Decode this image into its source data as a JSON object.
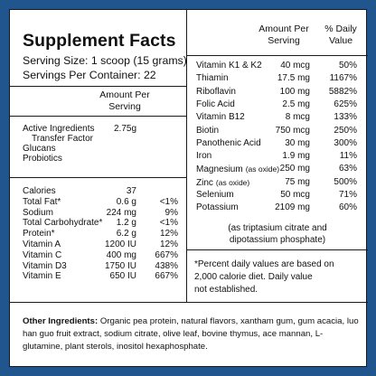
{
  "title": "Supplement Facts",
  "serving_size": "Serving Size: 1 scoop (15 grams)",
  "servings_per_container": "Servings Per Container: 22",
  "left_header": "Amount Per Serving",
  "right_header": {
    "amount": "Amount Per Serving",
    "dv": "% Daily Value"
  },
  "active": {
    "label": "Active Ingredients",
    "value": "2.75g",
    "sub": [
      "Transfer Factor",
      "Glucans",
      "Probiotics"
    ]
  },
  "left_rows": [
    {
      "name": "Calories",
      "amount": "37",
      "dv": ""
    },
    {
      "name": "Total Fat*",
      "amount": "0.6 g",
      "dv": "<1%"
    },
    {
      "name": "Sodium",
      "amount": "224 mg",
      "dv": "9%"
    },
    {
      "name": "Total Carbohydrate*",
      "amount": "1.2 g",
      "dv": "<1%"
    },
    {
      "name": "Protein*",
      "amount": "6.2 g",
      "dv": "12%"
    },
    {
      "name": "Vitamin A",
      "amount": "1200 IU",
      "dv": "12%"
    },
    {
      "name": "Vitamin C",
      "amount": "400 mg",
      "dv": "667%"
    },
    {
      "name": "Vitamin D3",
      "amount": "1750 IU",
      "dv": "438%"
    },
    {
      "name": "Vitamin E",
      "amount": "650 IU",
      "dv": "667%"
    }
  ],
  "right_rows": [
    {
      "name": "Vitamin K1 & K2",
      "qual": "",
      "amount": "40 mcg",
      "dv": "50%"
    },
    {
      "name": "Thiamin",
      "qual": "",
      "amount": "17.5 mg",
      "dv": "1167%"
    },
    {
      "name": "Riboflavin",
      "qual": "",
      "amount": "100 mg",
      "dv": "5882%"
    },
    {
      "name": "Folic Acid",
      "qual": "",
      "amount": "2.5 mg",
      "dv": "625%"
    },
    {
      "name": "Vitamin B12",
      "qual": "",
      "amount": "8 mcg",
      "dv": "133%"
    },
    {
      "name": "Biotin",
      "qual": "",
      "amount": "750 mcg",
      "dv": "250%"
    },
    {
      "name": "Panothenic Acid",
      "qual": "",
      "amount": "30 mg",
      "dv": "300%"
    },
    {
      "name": "Iron",
      "qual": "",
      "amount": "1.9 mg",
      "dv": "11%"
    },
    {
      "name": "Magnesium",
      "qual": "(as oxide)",
      "amount": "250 mg",
      "dv": "63%"
    },
    {
      "name": "Zinc",
      "qual": "(as oxide)",
      "amount": "75 mg",
      "dv": "500%"
    },
    {
      "name": "Selenium",
      "qual": "",
      "amount": "50 mcg",
      "dv": "71%"
    },
    {
      "name": "Potassium",
      "qual": "",
      "amount": "2109 mg",
      "dv": "60%"
    }
  ],
  "potassium_note": [
    "(as triptasium citrate and",
    "dipotassium phosphate)"
  ],
  "footnote": [
    "*Percent daily values are based on",
    "2,000 calorie diet. Daily value",
    "not established."
  ],
  "other_label": "Other Ingredients:",
  "other_text": " Organic pea protein, natural flavors, xantham gum, gum acacia, luo han guo fruit extract, sodium citrate, olive leaf, bovine thymus, ace mannan, L-glutamine, plant sterols, inositol hexaphosphate.",
  "colors": {
    "background": "#20558e",
    "panel": "#ffffff",
    "text": "#111111"
  }
}
